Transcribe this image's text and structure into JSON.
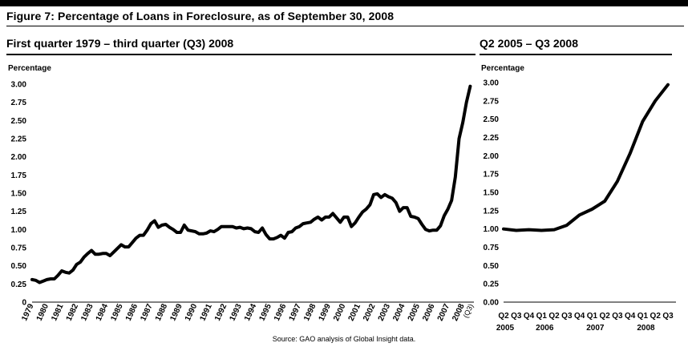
{
  "figure_title": "Figure 7: Percentage of Loans in Foreclosure, as of September 30, 2008",
  "source": "Source: GAO analysis of Global Insight data.",
  "colors": {
    "line": "#000000",
    "rule": "#000000",
    "background": "#ffffff"
  },
  "chart_data": [
    {
      "type": "line",
      "title": "First quarter 1979 – third quarter (Q3) 2008",
      "ylabel": "Percentage",
      "xlabel": "",
      "ylim": [
        0,
        3.0
      ],
      "yticks": [
        "0",
        "0.25",
        "0.50",
        "0.75",
        "1.00",
        "1.25",
        "1.50",
        "1.75",
        "2.00",
        "2.25",
        "2.50",
        "2.75",
        "3.00"
      ],
      "xlim": [
        1979,
        2008.75
      ],
      "xticks": [
        "1979",
        "1980",
        "1981",
        "1982",
        "1983",
        "1984",
        "1985",
        "1986",
        "1987",
        "1988",
        "1989",
        "1990",
        "1991",
        "1992",
        "1993",
        "1994",
        "1995",
        "1996",
        "1997",
        "1998",
        "1999",
        "2000",
        "2001",
        "2002",
        "2003",
        "2004",
        "2005",
        "2006",
        "2007",
        "2008"
      ],
      "xtick_note": "(Q3)",
      "grid": false,
      "series": [
        {
          "points": [
            [
              1979.0,
              0.31
            ],
            [
              1979.25,
              0.3
            ],
            [
              1979.5,
              0.27
            ],
            [
              1979.75,
              0.29
            ],
            [
              1980.0,
              0.31
            ],
            [
              1980.25,
              0.32
            ],
            [
              1980.5,
              0.32
            ],
            [
              1980.75,
              0.37
            ],
            [
              1981.0,
              0.43
            ],
            [
              1981.25,
              0.41
            ],
            [
              1981.5,
              0.4
            ],
            [
              1981.75,
              0.44
            ],
            [
              1982.0,
              0.52
            ],
            [
              1982.25,
              0.55
            ],
            [
              1982.5,
              0.62
            ],
            [
              1982.75,
              0.67
            ],
            [
              1983.0,
              0.71
            ],
            [
              1983.25,
              0.66
            ],
            [
              1983.5,
              0.66
            ],
            [
              1983.75,
              0.67
            ],
            [
              1984.0,
              0.67
            ],
            [
              1984.25,
              0.64
            ],
            [
              1984.5,
              0.69
            ],
            [
              1984.75,
              0.74
            ],
            [
              1985.0,
              0.79
            ],
            [
              1985.25,
              0.76
            ],
            [
              1985.5,
              0.76
            ],
            [
              1985.75,
              0.82
            ],
            [
              1986.0,
              0.88
            ],
            [
              1986.25,
              0.92
            ],
            [
              1986.5,
              0.92
            ],
            [
              1986.75,
              0.99
            ],
            [
              1987.0,
              1.08
            ],
            [
              1987.25,
              1.12
            ],
            [
              1987.5,
              1.03
            ],
            [
              1987.75,
              1.06
            ],
            [
              1988.0,
              1.07
            ],
            [
              1988.25,
              1.03
            ],
            [
              1988.5,
              1.0
            ],
            [
              1988.75,
              0.96
            ],
            [
              1989.0,
              0.96
            ],
            [
              1989.25,
              1.06
            ],
            [
              1989.5,
              0.99
            ],
            [
              1989.75,
              0.98
            ],
            [
              1990.0,
              0.97
            ],
            [
              1990.25,
              0.94
            ],
            [
              1990.5,
              0.94
            ],
            [
              1990.75,
              0.95
            ],
            [
              1991.0,
              0.98
            ],
            [
              1991.25,
              0.97
            ],
            [
              1991.5,
              1.0
            ],
            [
              1991.75,
              1.04
            ],
            [
              1992.0,
              1.04
            ],
            [
              1992.25,
              1.04
            ],
            [
              1992.5,
              1.04
            ],
            [
              1992.75,
              1.02
            ],
            [
              1993.0,
              1.03
            ],
            [
              1993.25,
              1.01
            ],
            [
              1993.5,
              1.02
            ],
            [
              1993.75,
              1.01
            ],
            [
              1994.0,
              0.97
            ],
            [
              1994.25,
              0.96
            ],
            [
              1994.5,
              1.02
            ],
            [
              1994.75,
              0.93
            ],
            [
              1995.0,
              0.87
            ],
            [
              1995.25,
              0.87
            ],
            [
              1995.5,
              0.89
            ],
            [
              1995.75,
              0.92
            ],
            [
              1996.0,
              0.88
            ],
            [
              1996.25,
              0.96
            ],
            [
              1996.5,
              0.97
            ],
            [
              1996.75,
              1.02
            ],
            [
              1997.0,
              1.04
            ],
            [
              1997.25,
              1.08
            ],
            [
              1997.5,
              1.09
            ],
            [
              1997.75,
              1.1
            ],
            [
              1998.0,
              1.14
            ],
            [
              1998.25,
              1.17
            ],
            [
              1998.5,
              1.13
            ],
            [
              1998.75,
              1.17
            ],
            [
              1999.0,
              1.17
            ],
            [
              1999.25,
              1.22
            ],
            [
              1999.5,
              1.16
            ],
            [
              1999.75,
              1.1
            ],
            [
              2000.0,
              1.17
            ],
            [
              2000.25,
              1.17
            ],
            [
              2000.5,
              1.04
            ],
            [
              2000.75,
              1.09
            ],
            [
              2001.0,
              1.17
            ],
            [
              2001.25,
              1.24
            ],
            [
              2001.5,
              1.28
            ],
            [
              2001.75,
              1.34
            ],
            [
              2002.0,
              1.48
            ],
            [
              2002.25,
              1.49
            ],
            [
              2002.5,
              1.44
            ],
            [
              2002.75,
              1.48
            ],
            [
              2003.0,
              1.45
            ],
            [
              2003.25,
              1.43
            ],
            [
              2003.5,
              1.37
            ],
            [
              2003.75,
              1.25
            ],
            [
              2004.0,
              1.3
            ],
            [
              2004.25,
              1.3
            ],
            [
              2004.5,
              1.18
            ],
            [
              2004.75,
              1.17
            ],
            [
              2005.0,
              1.15
            ],
            [
              2005.25,
              1.07
            ],
            [
              2005.5,
              1.0
            ],
            [
              2005.75,
              0.98
            ],
            [
              2006.0,
              0.99
            ],
            [
              2006.25,
              0.99
            ],
            [
              2006.5,
              1.05
            ],
            [
              2006.75,
              1.19
            ],
            [
              2007.0,
              1.28
            ],
            [
              2007.25,
              1.4
            ],
            [
              2007.5,
              1.72
            ],
            [
              2007.75,
              2.25
            ],
            [
              2008.0,
              2.47
            ],
            [
              2008.25,
              2.75
            ],
            [
              2008.5,
              2.97
            ]
          ]
        }
      ]
    },
    {
      "type": "line",
      "title": "Q2 2005 – Q3 2008",
      "ylabel": "Percentage",
      "xlabel": "",
      "ylim": [
        0,
        3.0
      ],
      "yticks": [
        "0.00",
        "0.25",
        "0.50",
        "0.75",
        "1.00",
        "1.25",
        "1.50",
        "1.75",
        "2.00",
        "2.25",
        "2.50",
        "2.75",
        "3.00"
      ],
      "categories": [
        "Q2",
        "Q3",
        "Q4",
        "Q1",
        "Q2",
        "Q3",
        "Q4",
        "Q1",
        "Q2",
        "Q3",
        "Q4",
        "Q1",
        "Q2",
        "Q3"
      ],
      "year_labels": [
        {
          "label": "2005",
          "category_index": 0
        },
        {
          "label": "2006",
          "category_index": 3
        },
        {
          "label": "2007",
          "category_index": 7
        },
        {
          "label": "2008",
          "category_index": 11
        }
      ],
      "grid": false,
      "series": [
        {
          "values": [
            1.0,
            0.98,
            0.99,
            0.98,
            0.99,
            1.05,
            1.19,
            1.27,
            1.38,
            1.65,
            2.03,
            2.47,
            2.75,
            2.97
          ]
        }
      ]
    }
  ]
}
